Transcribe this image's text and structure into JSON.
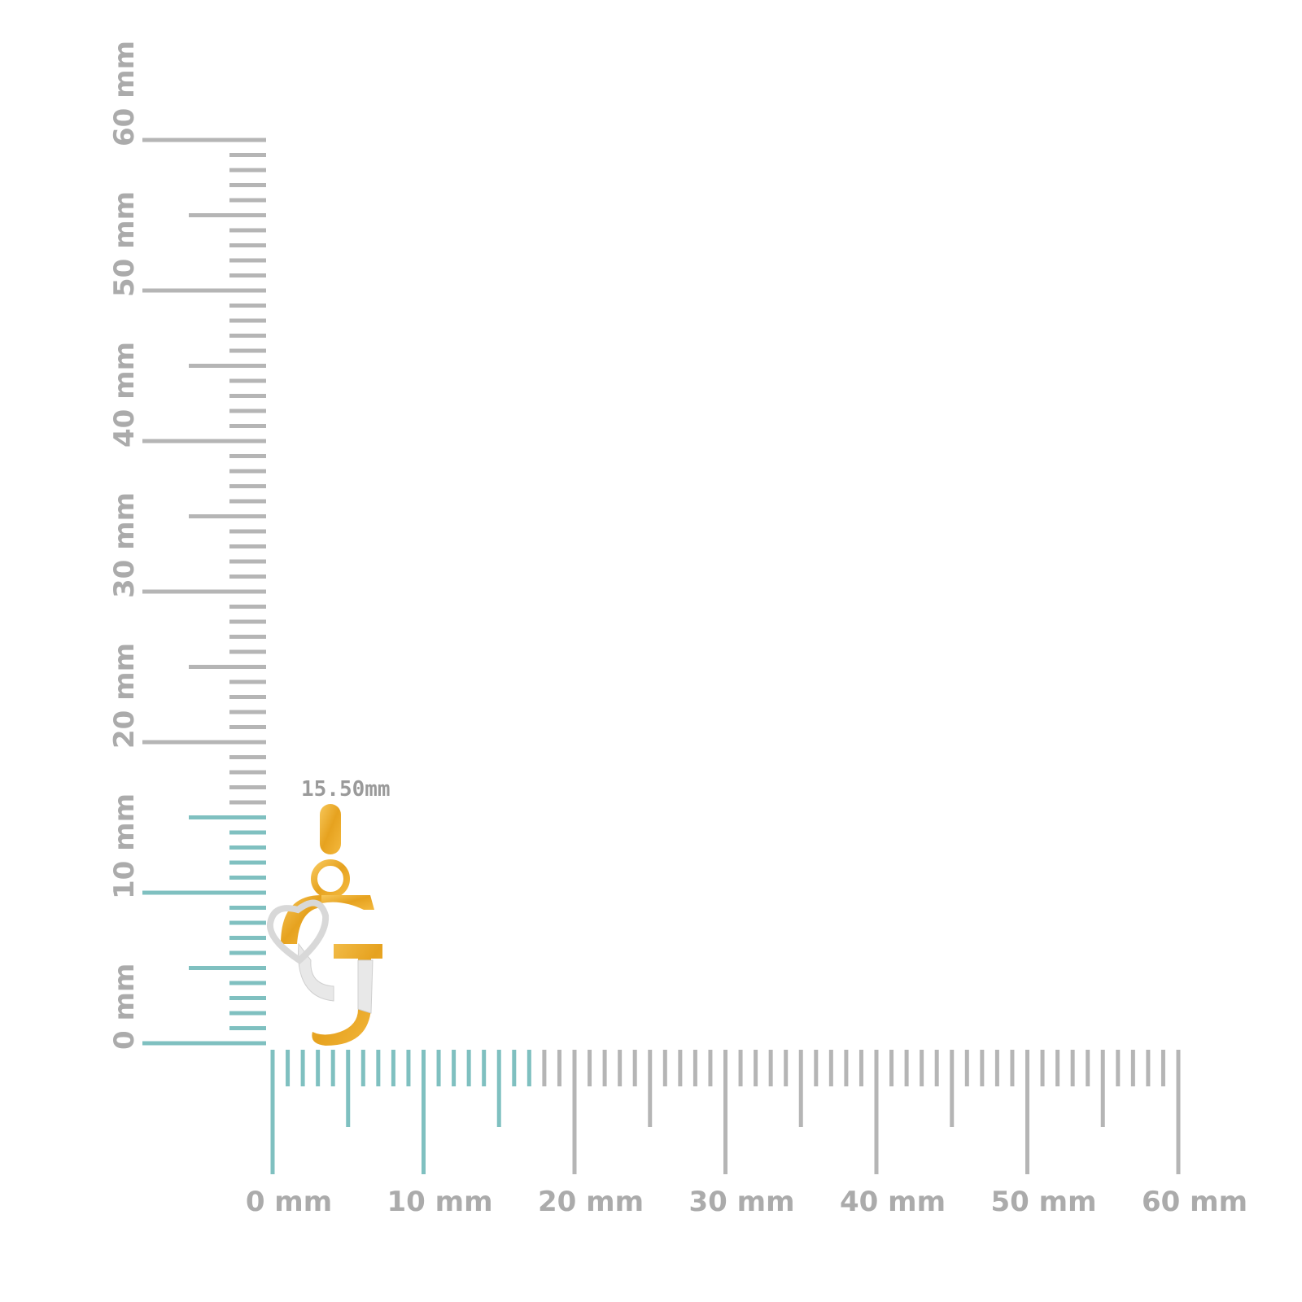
{
  "vertical_ruler": {
    "labels": [
      "0 mm",
      "10 mm",
      "20 mm",
      "30 mm",
      "40 mm",
      "50 mm",
      "60 mm"
    ]
  },
  "horizontal_ruler": {
    "labels": [
      "0 mm",
      "10 mm",
      "20 mm",
      "30 mm",
      "40 mm",
      "50 mm",
      "60 mm"
    ]
  },
  "measurement": "15.50mm"
}
